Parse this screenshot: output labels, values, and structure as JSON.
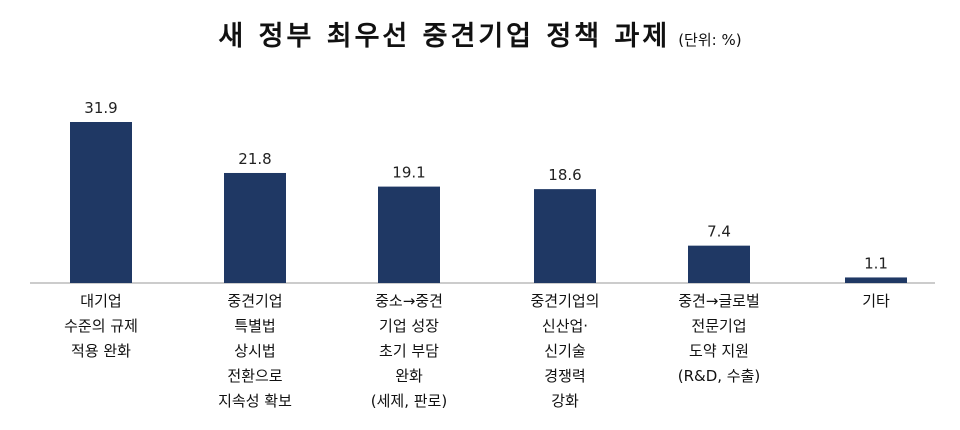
{
  "title": "새 정부 최우선 중견기업 정책 과제",
  "unit": "(단위: %)",
  "chart_data": {
    "type": "bar",
    "title": "새 정부 최우선 중견기업 정책 과제",
    "unit": "(단위: %)",
    "categories": [
      [
        "대기업",
        "수준의 규제",
        "적용 완화"
      ],
      [
        "중견기업",
        "특별법",
        "상시법",
        "전환으로",
        "지속성 확보"
      ],
      [
        "중소→중견",
        "기업 성장",
        "초기 부담",
        "완화",
        "(세제, 판로)"
      ],
      [
        "중견기업의",
        "신산업·",
        "신기술",
        "경쟁력",
        "강화"
      ],
      [
        "중견→글로벌",
        "전문기업",
        "도약 지원",
        "(R&D, 수출)"
      ],
      [
        "기타"
      ]
    ],
    "values": [
      31.9,
      21.8,
      19.1,
      18.6,
      7.4,
      1.1
    ],
    "value_labels": [
      "31.9",
      "21.8",
      "19.1",
      "18.6",
      "7.4",
      "1.1"
    ],
    "ylim": [
      0,
      32
    ],
    "grid": false,
    "bar_color": "#1f3864",
    "axis_color": "#999999"
  }
}
